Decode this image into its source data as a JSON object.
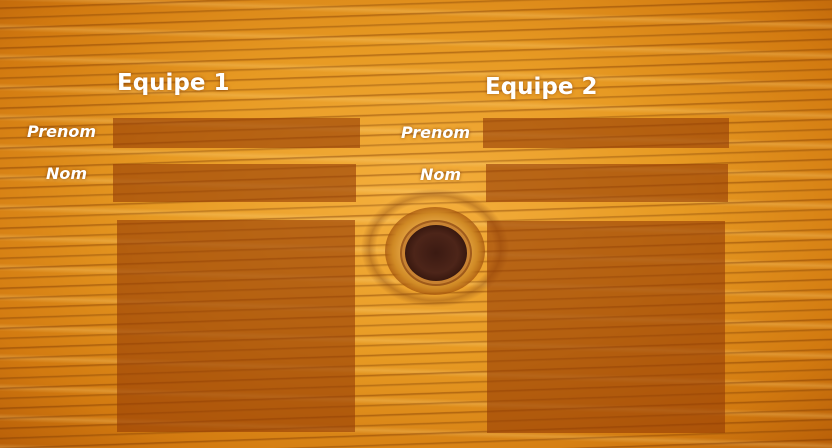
{
  "team1": {
    "title": "Equipe 1",
    "prenom_label": "Prenom",
    "nom_label": "Nom",
    "prenom_value": "",
    "nom_value": ""
  },
  "team2": {
    "title": "Equipe 2",
    "prenom_label": "Prenom",
    "nom_label": "Nom",
    "prenom_value": "",
    "nom_value": ""
  },
  "colors": {
    "background": "#e79a23",
    "field_fill": "#963e05",
    "text": "#ffffff"
  }
}
